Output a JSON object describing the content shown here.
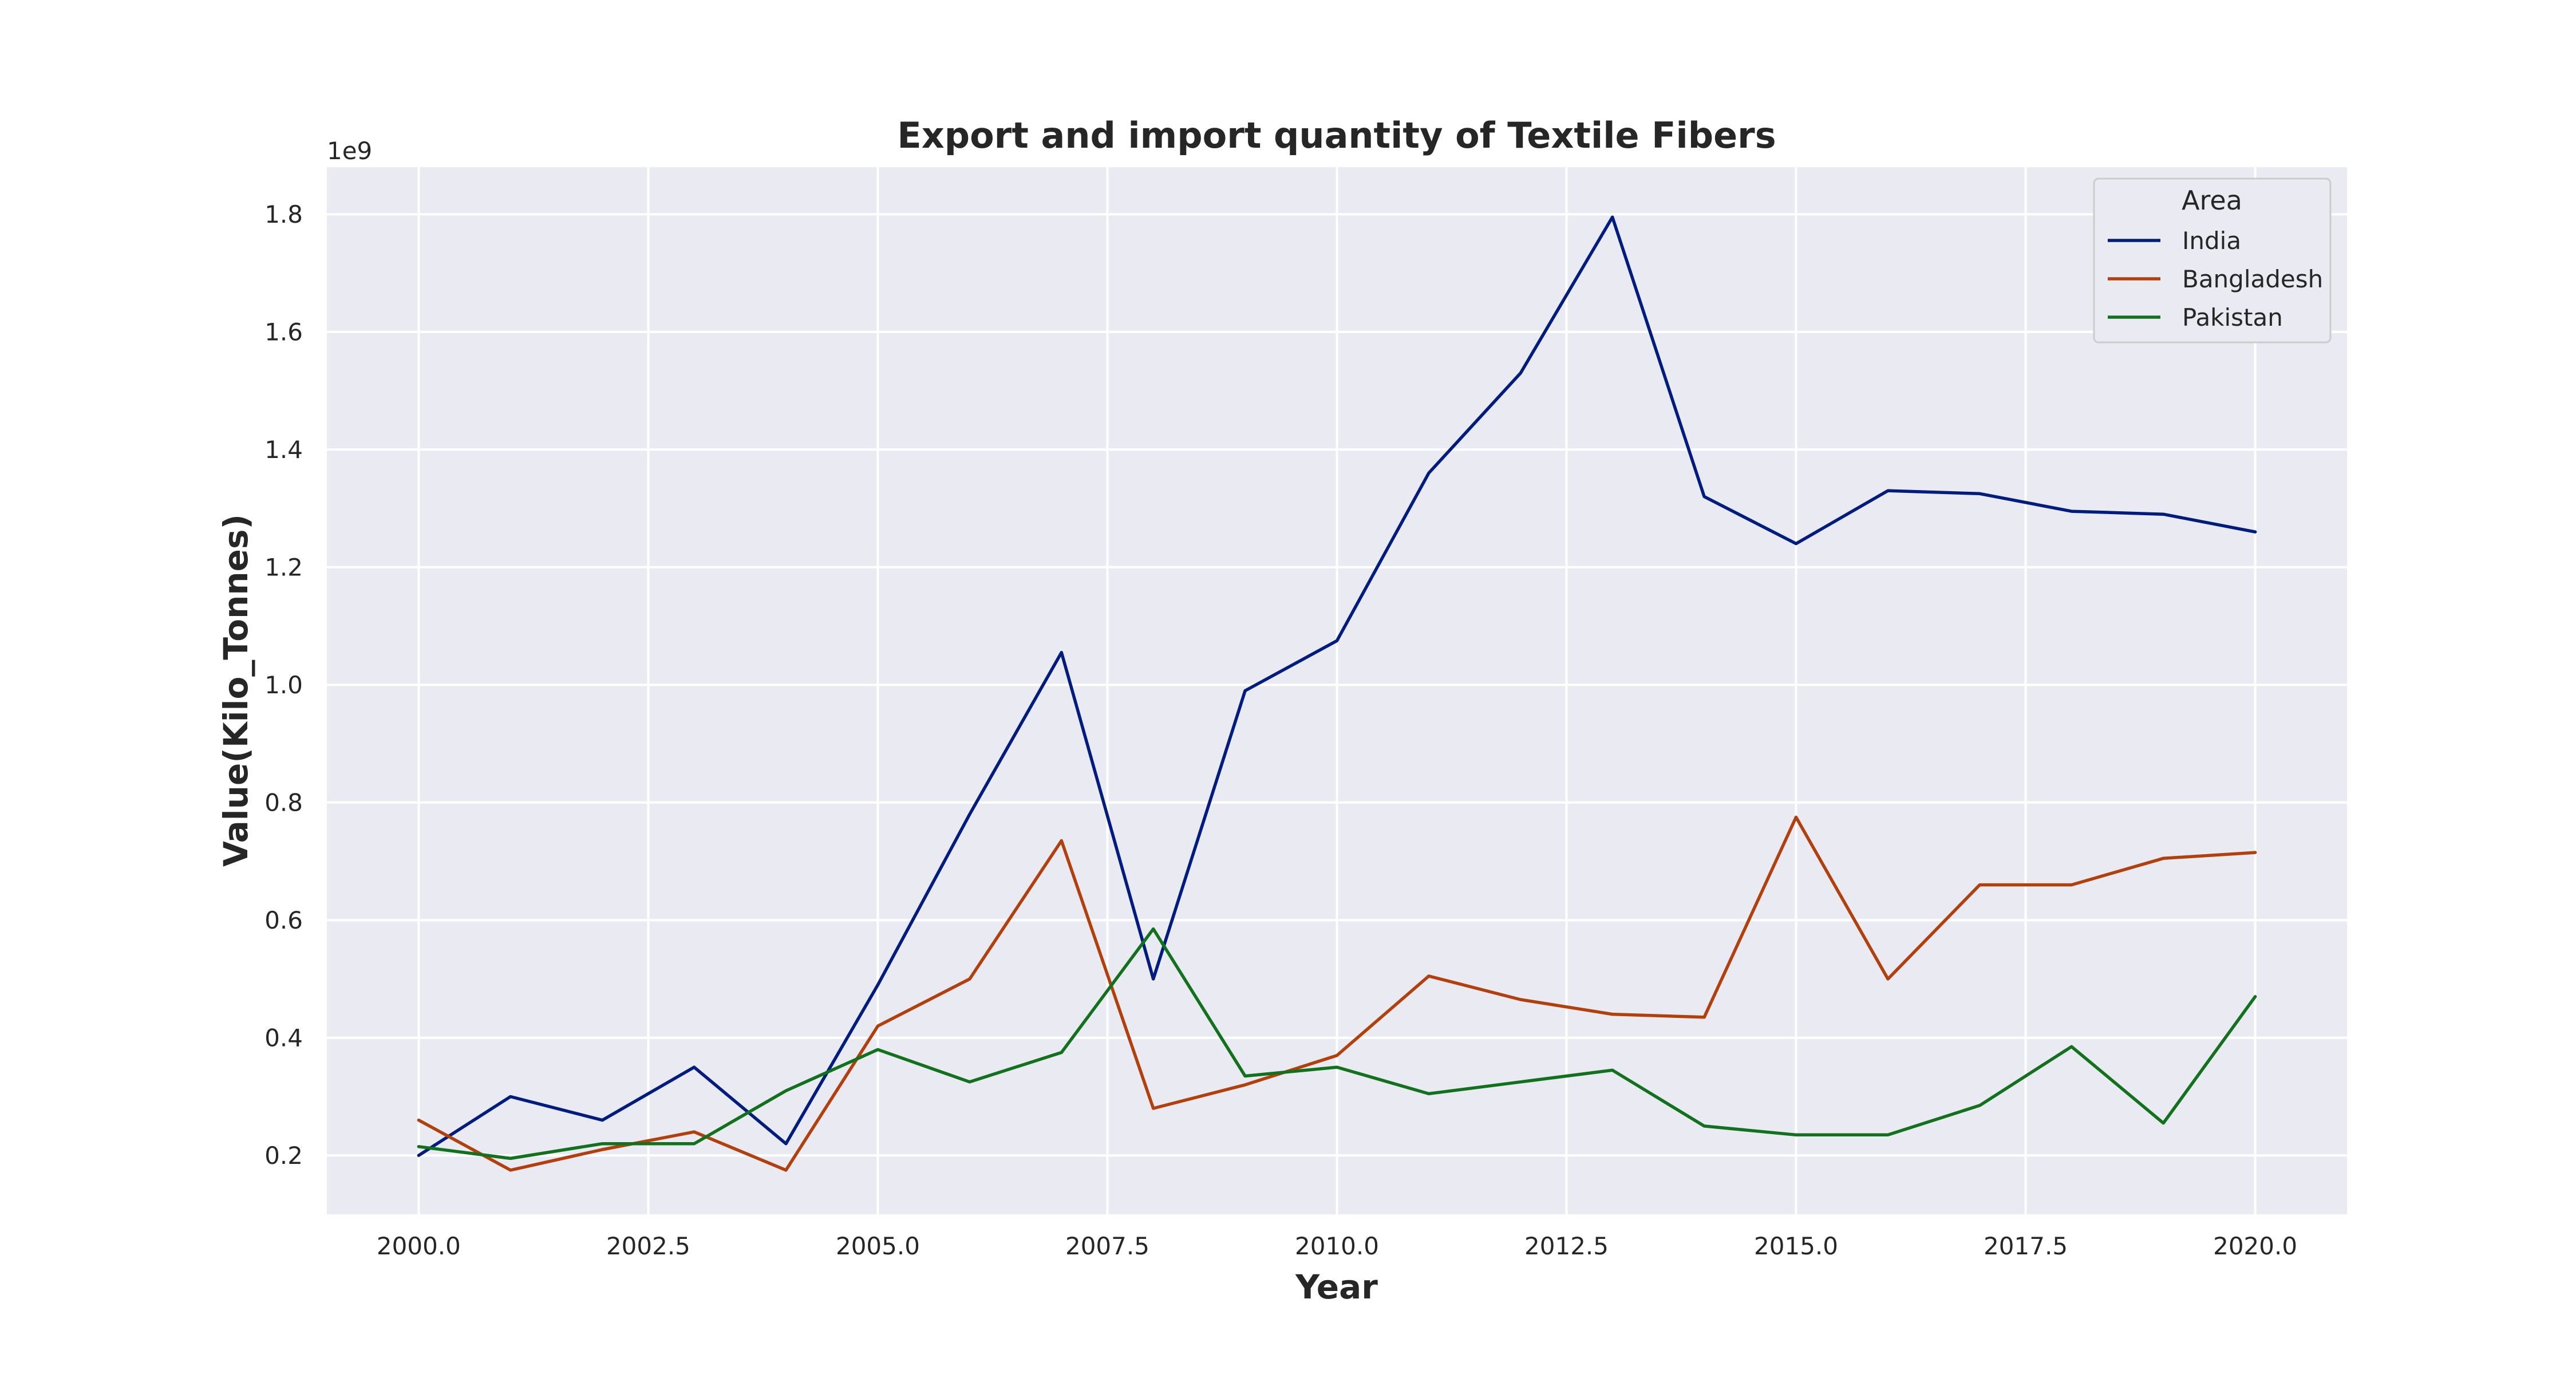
{
  "chart_data": {
    "type": "line",
    "title": "Export and import quantity of Textile Fibers",
    "xlabel": "Year",
    "ylabel": "Value(Kilo_Tonnes)",
    "y_offset_label": "1e9",
    "xlim": [
      1999.0,
      2021.0
    ],
    "ylim": [
      0.1,
      1.88
    ],
    "x_ticks": [
      2000.0,
      2002.5,
      2005.0,
      2007.5,
      2010.0,
      2012.5,
      2015.0,
      2017.5,
      2020.0
    ],
    "x_tick_labels": [
      "2000.0",
      "2002.5",
      "2005.0",
      "2007.5",
      "2010.0",
      "2012.5",
      "2015.0",
      "2017.5",
      "2020.0"
    ],
    "y_ticks": [
      0.2,
      0.4,
      0.6,
      0.8,
      1.0,
      1.2,
      1.4,
      1.6,
      1.8
    ],
    "y_tick_labels": [
      "0.2",
      "0.4",
      "0.6",
      "0.8",
      "1.0",
      "1.2",
      "1.4",
      "1.6",
      "1.8"
    ],
    "x": [
      2000,
      2001,
      2002,
      2003,
      2004,
      2005,
      2006,
      2007,
      2008,
      2009,
      2010,
      2011,
      2012,
      2013,
      2014,
      2015,
      2016,
      2017,
      2018,
      2019,
      2020
    ],
    "series": [
      {
        "name": "India",
        "color": "#001c7f",
        "values": [
          0.2,
          0.3,
          0.26,
          0.35,
          0.22,
          0.49,
          0.78,
          1.055,
          0.5,
          0.99,
          1.075,
          1.36,
          1.53,
          1.795,
          1.32,
          1.24,
          1.33,
          1.325,
          1.295,
          1.29,
          1.26
        ]
      },
      {
        "name": "Bangladesh",
        "color": "#b1400d",
        "values": [
          0.26,
          0.175,
          0.21,
          0.24,
          0.175,
          0.42,
          0.5,
          0.735,
          0.28,
          0.32,
          0.37,
          0.505,
          0.465,
          0.44,
          0.435,
          0.775,
          0.5,
          0.66,
          0.66,
          0.705,
          0.715
        ]
      },
      {
        "name": "Pakistan",
        "color": "#12711c",
        "values": [
          0.215,
          0.195,
          0.22,
          0.22,
          0.31,
          0.38,
          0.325,
          0.375,
          0.585,
          0.335,
          0.35,
          0.305,
          0.325,
          0.345,
          0.25,
          0.235,
          0.235,
          0.285,
          0.385,
          0.255,
          0.47
        ]
      }
    ],
    "legend": {
      "title": "Area",
      "placement": "top-right"
    },
    "grid": true,
    "background": "#eaeaf2",
    "grid_color": "#ffffff"
  }
}
